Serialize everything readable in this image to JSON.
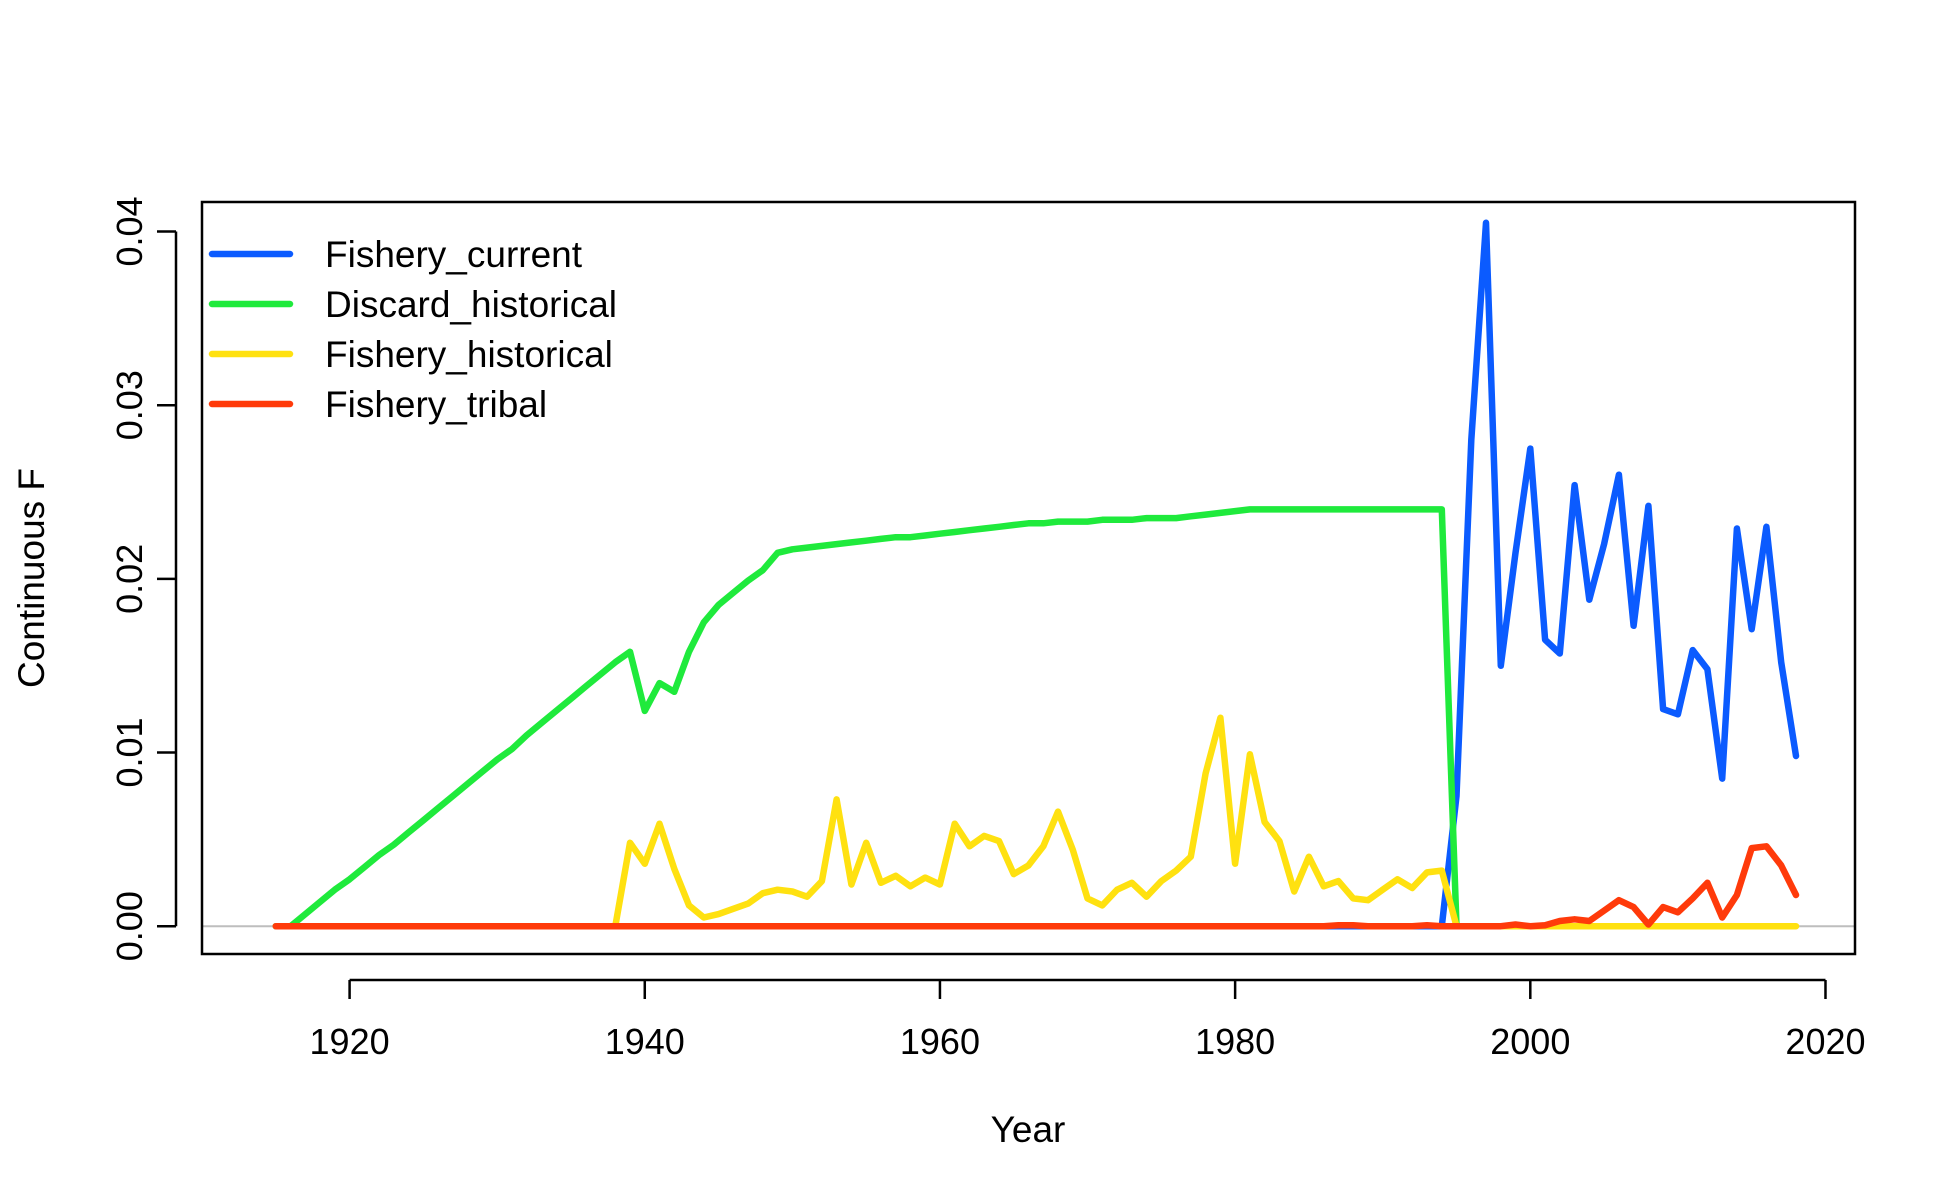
{
  "chart_data": {
    "type": "line",
    "title": "",
    "xlabel": "Year",
    "ylabel": "Continuous F",
    "xlim": [
      1910,
      2022
    ],
    "ylim": [
      -0.0016,
      0.0417
    ],
    "x_ticks": [
      1920,
      1940,
      1960,
      1980,
      2000,
      2020
    ],
    "x_tick_labels": [
      "1920",
      "1940",
      "1960",
      "1980",
      "2000",
      "2020"
    ],
    "y_ticks": [
      0,
      0.01,
      0.02,
      0.03,
      0.04
    ],
    "y_tick_labels": [
      "0.00",
      "0.01",
      "0.02",
      "0.03",
      "0.04"
    ],
    "reference_line": {
      "y": 0,
      "color": "#bebebe"
    },
    "grid": false,
    "legend_position": "top-left",
    "series": [
      {
        "name": "Fishery_current",
        "color": "#0B5BFF",
        "x": [
          1915,
          1916,
          1917,
          1918,
          1919,
          1920,
          1921,
          1922,
          1923,
          1924,
          1925,
          1926,
          1927,
          1928,
          1929,
          1930,
          1931,
          1932,
          1933,
          1934,
          1935,
          1936,
          1937,
          1938,
          1939,
          1940,
          1941,
          1942,
          1943,
          1944,
          1945,
          1946,
          1947,
          1948,
          1949,
          1950,
          1951,
          1952,
          1953,
          1954,
          1955,
          1956,
          1957,
          1958,
          1959,
          1960,
          1961,
          1962,
          1963,
          1964,
          1965,
          1966,
          1967,
          1968,
          1969,
          1970,
          1971,
          1972,
          1973,
          1974,
          1975,
          1976,
          1977,
          1978,
          1979,
          1980,
          1981,
          1982,
          1983,
          1984,
          1985,
          1986,
          1987,
          1988,
          1989,
          1990,
          1991,
          1992,
          1993,
          1994,
          1995,
          1996,
          1997,
          1998,
          1999,
          2000,
          2001,
          2002,
          2003,
          2004,
          2005,
          2006,
          2007,
          2008,
          2009,
          2010,
          2011,
          2012,
          2013,
          2014,
          2015,
          2016,
          2017,
          2018
        ],
        "y": [
          0,
          0,
          0,
          0,
          0,
          0,
          0,
          0,
          0,
          0,
          0,
          0,
          0,
          0,
          0,
          0,
          0,
          0,
          0,
          0,
          0,
          0,
          0,
          0,
          0,
          0,
          0,
          0,
          0,
          0,
          0,
          0,
          0,
          0,
          0,
          0,
          0,
          0,
          0,
          0,
          0,
          0,
          0,
          0,
          0,
          0,
          0,
          0,
          0,
          0,
          0,
          0,
          0,
          0,
          0,
          0,
          0,
          0,
          0,
          0,
          0,
          0,
          0,
          0,
          0,
          0,
          0,
          0,
          0,
          0,
          0,
          0,
          0,
          0,
          0,
          0,
          0,
          0,
          0,
          0,
          0.0075,
          0.028,
          0.0405,
          0.015,
          0.0215,
          0.0275,
          0.0165,
          0.0157,
          0.0254,
          0.0188,
          0.022,
          0.026,
          0.0173,
          0.0242,
          0.0125,
          0.0122,
          0.0159,
          0.0148,
          0.0085,
          0.0229,
          0.0171,
          0.023,
          0.0152,
          0.0098
        ]
      },
      {
        "name": "Discard_historical",
        "color": "#1FEA3C",
        "x": [
          1915,
          1916,
          1917,
          1918,
          1919,
          1920,
          1921,
          1922,
          1923,
          1924,
          1925,
          1926,
          1927,
          1928,
          1929,
          1930,
          1931,
          1932,
          1933,
          1934,
          1935,
          1936,
          1937,
          1938,
          1939,
          1940,
          1941,
          1942,
          1943,
          1944,
          1945,
          1946,
          1947,
          1948,
          1949,
          1950,
          1951,
          1952,
          1953,
          1954,
          1955,
          1956,
          1957,
          1958,
          1959,
          1960,
          1961,
          1962,
          1963,
          1964,
          1965,
          1966,
          1967,
          1968,
          1969,
          1970,
          1971,
          1972,
          1973,
          1974,
          1975,
          1976,
          1977,
          1978,
          1979,
          1980,
          1981,
          1982,
          1983,
          1984,
          1985,
          1986,
          1987,
          1988,
          1989,
          1990,
          1991,
          1992,
          1993,
          1994,
          1995
        ],
        "y": [
          0,
          0,
          0.0007,
          0.0014,
          0.0021,
          0.0027,
          0.0034,
          0.0041,
          0.0047,
          0.0054,
          0.0061,
          0.0068,
          0.0075,
          0.0082,
          0.0089,
          0.0096,
          0.0102,
          0.011,
          0.0117,
          0.0124,
          0.0131,
          0.0138,
          0.0145,
          0.0152,
          0.0158,
          0.0124,
          0.014,
          0.0135,
          0.0158,
          0.0175,
          0.0185,
          0.0192,
          0.0199,
          0.0205,
          0.0215,
          0.0217,
          0.0218,
          0.0219,
          0.022,
          0.0221,
          0.0222,
          0.0223,
          0.0224,
          0.0224,
          0.0225,
          0.0226,
          0.0227,
          0.0228,
          0.0229,
          0.023,
          0.0231,
          0.0232,
          0.0232,
          0.0233,
          0.0233,
          0.0233,
          0.0234,
          0.0234,
          0.0234,
          0.0235,
          0.0235,
          0.0235,
          0.0236,
          0.0237,
          0.0238,
          0.0239,
          0.024,
          0.024,
          0.024,
          0.024,
          0.024,
          0.024,
          0.024,
          0.024,
          0.024,
          0.024,
          0.024,
          0.024,
          0.024,
          0.024,
          0
        ]
      },
      {
        "name": "Fishery_historical",
        "color": "#FFE110",
        "x": [
          1915,
          1916,
          1917,
          1918,
          1919,
          1920,
          1921,
          1922,
          1923,
          1924,
          1925,
          1926,
          1927,
          1928,
          1929,
          1930,
          1931,
          1932,
          1933,
          1934,
          1935,
          1936,
          1937,
          1938,
          1939,
          1940,
          1941,
          1942,
          1943,
          1944,
          1945,
          1946,
          1947,
          1948,
          1949,
          1950,
          1951,
          1952,
          1953,
          1954,
          1955,
          1956,
          1957,
          1958,
          1959,
          1960,
          1961,
          1962,
          1963,
          1964,
          1965,
          1966,
          1967,
          1968,
          1969,
          1970,
          1971,
          1972,
          1973,
          1974,
          1975,
          1976,
          1977,
          1978,
          1979,
          1980,
          1981,
          1982,
          1983,
          1984,
          1985,
          1986,
          1987,
          1988,
          1989,
          1990,
          1991,
          1992,
          1993,
          1994,
          1995,
          1996,
          1997,
          1998,
          1999,
          2000,
          2001,
          2002,
          2003,
          2004,
          2005,
          2006,
          2007,
          2008,
          2009,
          2010,
          2011,
          2012,
          2013,
          2014,
          2015,
          2016,
          2017,
          2018
        ],
        "y": [
          0,
          0,
          0,
          0,
          0,
          0,
          0,
          0,
          0,
          0,
          0,
          0,
          0,
          0,
          0,
          0,
          0,
          0,
          0,
          0,
          0,
          0,
          0,
          0,
          0.0048,
          0.0036,
          0.0059,
          0.0033,
          0.0012,
          0.0005,
          0.0007,
          0.001,
          0.0013,
          0.0019,
          0.0021,
          0.002,
          0.0017,
          0.0026,
          0.0073,
          0.0024,
          0.0048,
          0.0025,
          0.0029,
          0.0023,
          0.0028,
          0.0024,
          0.0059,
          0.0046,
          0.0052,
          0.0049,
          0.003,
          0.0035,
          0.0046,
          0.0066,
          0.0044,
          0.0016,
          0.0012,
          0.0021,
          0.0025,
          0.0017,
          0.0026,
          0.0032,
          0.004,
          0.0088,
          0.012,
          0.0036,
          0.0099,
          0.006,
          0.0049,
          0.002,
          0.004,
          0.0023,
          0.0026,
          0.0016,
          0.0015,
          0.0021,
          0.0027,
          0.0022,
          0.0031,
          0.0032,
          0,
          0,
          0,
          0,
          0,
          0,
          0,
          0,
          0,
          0,
          0,
          0,
          0,
          0,
          0,
          0,
          0,
          0,
          0,
          0,
          0,
          0,
          0,
          0
        ]
      },
      {
        "name": "Fishery_tribal",
        "color": "#FF3A0A",
        "x": [
          1915,
          1916,
          1917,
          1918,
          1919,
          1920,
          1921,
          1922,
          1923,
          1924,
          1925,
          1926,
          1927,
          1928,
          1929,
          1930,
          1931,
          1932,
          1933,
          1934,
          1935,
          1936,
          1937,
          1938,
          1939,
          1940,
          1941,
          1942,
          1943,
          1944,
          1945,
          1946,
          1947,
          1948,
          1949,
          1950,
          1951,
          1952,
          1953,
          1954,
          1955,
          1956,
          1957,
          1958,
          1959,
          1960,
          1961,
          1962,
          1963,
          1964,
          1965,
          1966,
          1967,
          1968,
          1969,
          1970,
          1971,
          1972,
          1973,
          1974,
          1975,
          1976,
          1977,
          1978,
          1979,
          1980,
          1981,
          1982,
          1983,
          1984,
          1985,
          1986,
          1987,
          1988,
          1989,
          1990,
          1991,
          1992,
          1993,
          1994,
          1995,
          1996,
          1997,
          1998,
          1999,
          2000,
          2001,
          2002,
          2003,
          2004,
          2005,
          2006,
          2007,
          2008,
          2009,
          2010,
          2011,
          2012,
          2013,
          2014,
          2015,
          2016,
          2017,
          2018
        ],
        "y": [
          0,
          0,
          0,
          0,
          0,
          0,
          0,
          0,
          0,
          0,
          0,
          0,
          0,
          0,
          0,
          0,
          0,
          0,
          0,
          0,
          0,
          0,
          0,
          0,
          0,
          0,
          0,
          0,
          0,
          0,
          0,
          0,
          0,
          0,
          0,
          0,
          0,
          0,
          0,
          0,
          0,
          0,
          0,
          0,
          0,
          0,
          0,
          0,
          0,
          0,
          0,
          0,
          0,
          0,
          0,
          0,
          0,
          0,
          0,
          0,
          0,
          0,
          0,
          0,
          0,
          0,
          0,
          0,
          0,
          0,
          0,
          0,
          5e-05,
          5e-05,
          0,
          0,
          0,
          0,
          5e-05,
          0,
          0,
          0,
          0,
          0,
          0.0001,
          0,
          5e-05,
          0.0003,
          0.0004,
          0.0003,
          0.0009,
          0.0015,
          0.0011,
          0.0001,
          0.0011,
          0.0008,
          0.0016,
          0.0025,
          0.0005,
          0.0018,
          0.0045,
          0.0046,
          0.0035,
          0.0018
        ]
      }
    ]
  }
}
